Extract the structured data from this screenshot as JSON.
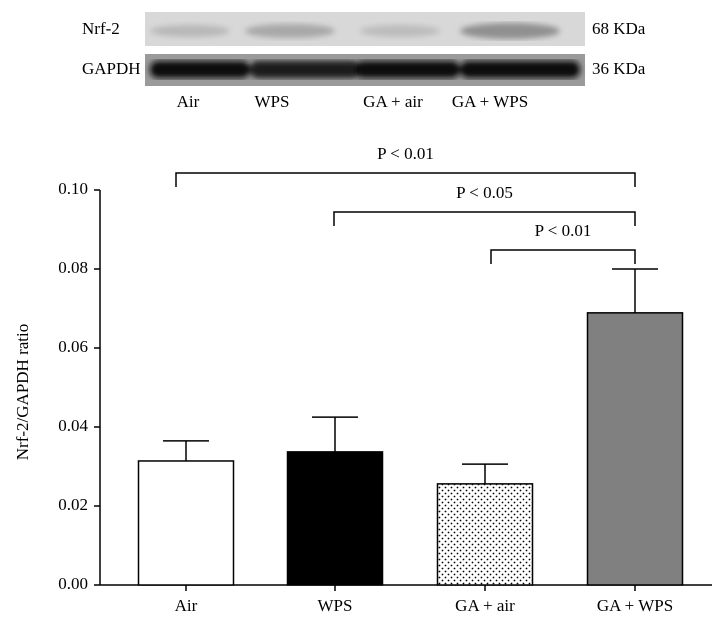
{
  "blot": {
    "rows": [
      "Nrf-2",
      "GAPDH"
    ],
    "weights": [
      "68 KDa",
      "36 KDa"
    ],
    "lanes": [
      "Air",
      "WPS",
      "GA + air",
      "GA + WPS"
    ]
  },
  "chart_data": {
    "type": "bar",
    "y_label": "Nrf-2/GAPDH ratio",
    "categories": [
      "Air",
      "WPS",
      "GA + air",
      "GA + WPS"
    ],
    "values": [
      0.0314,
      0.0337,
      0.0256,
      0.0689
    ],
    "errors": [
      0.0051,
      0.0088,
      0.005,
      0.0111
    ],
    "colors": [
      "#ffffff",
      "#000000",
      "dotted",
      "#808080"
    ],
    "ylim": [
      0,
      0.1
    ],
    "yticks": [
      {
        "value": 0,
        "label": "0.00"
      },
      {
        "value": 0.02,
        "label": "0.02"
      },
      {
        "value": 0.04,
        "label": "0.04"
      },
      {
        "value": 0.06,
        "label": "0.06"
      },
      {
        "value": 0.08,
        "label": "0.08"
      },
      {
        "value": 0.1,
        "label": "0.10"
      }
    ],
    "annotations": [
      "P < 0.01",
      "P < 0.05",
      "P < 0.01"
    ]
  }
}
